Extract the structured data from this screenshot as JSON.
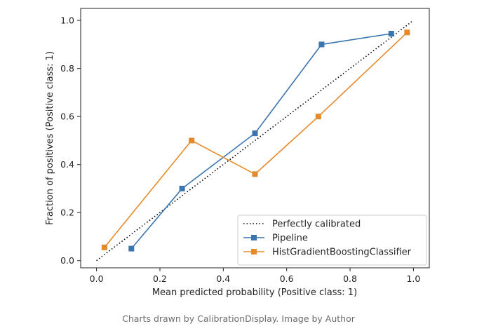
{
  "chart_data": {
    "type": "line",
    "xlabel": "Mean predicted probability (Positive class: 1)",
    "ylabel": "Fraction of positives (Positive class: 1)",
    "xlim": [
      -0.05,
      1.05
    ],
    "ylim": [
      -0.03,
      1.05
    ],
    "xticks": [
      "0.0",
      "0.2",
      "0.4",
      "0.6",
      "0.8",
      "1.0"
    ],
    "yticks": [
      "0.0",
      "0.2",
      "0.4",
      "0.6",
      "0.8",
      "1.0"
    ],
    "grid": false,
    "legend_position": "lower-right",
    "series": [
      {
        "name": "Perfectly calibrated",
        "style": "dotted",
        "color": "#000000",
        "x": [
          0.0,
          1.0
        ],
        "y": [
          0.0,
          1.0
        ]
      },
      {
        "name": "Pipeline",
        "style": "solid-square",
        "color": "#3a75b0",
        "x": [
          0.11,
          0.27,
          0.5,
          0.71,
          0.93
        ],
        "y": [
          0.05,
          0.3,
          0.53,
          0.9,
          0.945
        ]
      },
      {
        "name": "HistGradientBoostingClassifier",
        "style": "solid-square",
        "color": "#e58a2b",
        "x": [
          0.025,
          0.3,
          0.5,
          0.7,
          0.98
        ],
        "y": [
          0.055,
          0.5,
          0.36,
          0.6,
          0.95
        ]
      }
    ]
  },
  "caption": "Charts drawn by CalibrationDisplay. Image by Author"
}
